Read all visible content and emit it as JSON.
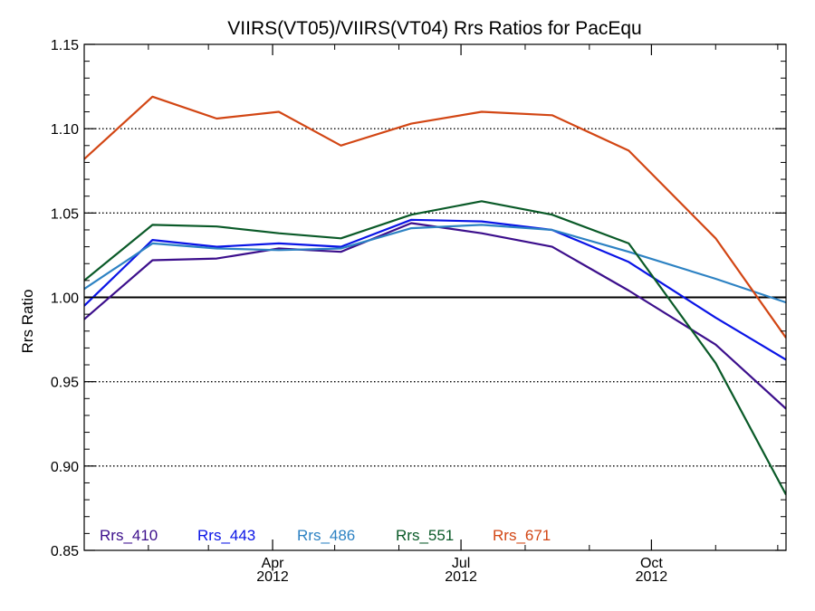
{
  "chart_data": {
    "type": "line",
    "title": "VIIRS(VT05)/VIIRS(VT04)  Rrs Ratios for PacEqu",
    "xlabel": "",
    "ylabel": "Rrs Ratio",
    "x": [
      "2012-01-01",
      "2012-02-03",
      "2012-03-05",
      "2012-04-04",
      "2012-05-04",
      "2012-06-07",
      "2012-07-11",
      "2012-08-14",
      "2012-09-20",
      "2012-11-01",
      "2012-12-05"
    ],
    "x_ticks": [
      {
        "month": "Apr",
        "year": "2012",
        "date": "2012-04-01"
      },
      {
        "month": "Jul",
        "year": "2012",
        "date": "2012-07-01"
      },
      {
        "month": "Oct",
        "year": "2012",
        "date": "2012-10-01"
      }
    ],
    "xlim": [
      "2012-01-01",
      "2012-12-05"
    ],
    "ylim": [
      0.85,
      1.15
    ],
    "y_ticks": [
      "0.85",
      "0.90",
      "0.95",
      "1.00",
      "1.05",
      "1.10",
      "1.15"
    ],
    "reference_line": 1.0,
    "grid": "horizontal-dotted",
    "legend_position": "bottom-left",
    "series": [
      {
        "name": "Rrs_410",
        "color": "#3c0f8c",
        "values": [
          0.987,
          1.022,
          1.023,
          1.029,
          1.027,
          1.044,
          1.038,
          1.03,
          1.004,
          0.972,
          0.934
        ]
      },
      {
        "name": "Rrs_443",
        "color": "#0a14e6",
        "values": [
          0.995,
          1.034,
          1.03,
          1.032,
          1.03,
          1.046,
          1.045,
          1.04,
          1.021,
          0.988,
          0.963
        ]
      },
      {
        "name": "Rrs_486",
        "color": "#2d82c3",
        "values": [
          1.005,
          1.032,
          1.029,
          1.028,
          1.029,
          1.041,
          1.043,
          1.04,
          1.027,
          1.011,
          0.997
        ]
      },
      {
        "name": "Rrs_551",
        "color": "#0a5a28",
        "values": [
          1.01,
          1.043,
          1.042,
          1.038,
          1.035,
          1.049,
          1.057,
          1.049,
          1.032,
          0.961,
          0.883
        ]
      },
      {
        "name": "Rrs_671",
        "color": "#d24614",
        "values": [
          1.082,
          1.119,
          1.106,
          1.11,
          1.09,
          1.103,
          1.11,
          1.108,
          1.087,
          1.035,
          0.976
        ]
      }
    ]
  }
}
